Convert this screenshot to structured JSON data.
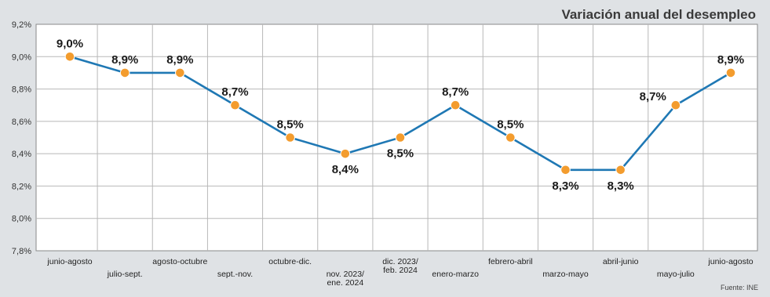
{
  "chart_data": {
    "type": "line",
    "title": "Variación anual del desempleo",
    "source": "Fuente: INE",
    "categories": [
      [
        "junio-agosto"
      ],
      [
        "julio-sept."
      ],
      [
        "agosto-octubre"
      ],
      [
        "sept.-nov."
      ],
      [
        "octubre-dic."
      ],
      [
        "nov. 2023/",
        "ene. 2024"
      ],
      [
        "dic. 2023/",
        "feb. 2024"
      ],
      [
        "enero-marzo"
      ],
      [
        "febrero-abril"
      ],
      [
        "marzo-mayo"
      ],
      [
        "abril-junio"
      ],
      [
        "mayo-julio"
      ],
      [
        "junio-agosto"
      ]
    ],
    "values": [
      9.0,
      8.9,
      8.9,
      8.7,
      8.5,
      8.4,
      8.5,
      8.7,
      8.5,
      8.3,
      8.3,
      8.7,
      8.9
    ],
    "data_labels": [
      "9,0%",
      "8,9%",
      "8,9%",
      "8,7%",
      "8,5%",
      "8,4%",
      "8,5%",
      "8,7%",
      "8,5%",
      "8,3%",
      "8,3%",
      "8,7%",
      "8,9%"
    ],
    "label_position": [
      "above",
      "above",
      "above",
      "above",
      "above",
      "below",
      "below",
      "above",
      "above",
      "below",
      "below",
      "left",
      "above"
    ],
    "ylim": [
      7.8,
      9.2
    ],
    "yticks": [
      7.8,
      8.0,
      8.2,
      8.4,
      8.6,
      8.8,
      9.0,
      9.2
    ],
    "ytick_labels": [
      "7,8%",
      "8,0%",
      "8,2%",
      "8,4%",
      "8,6%",
      "8,8%",
      "9,0%",
      "9,2%"
    ],
    "grid": true,
    "colors": {
      "line": "#1f78b4",
      "marker": "#f39c2e",
      "background": "#dfe2e5",
      "plot_background": "#ffffff",
      "grid": "#b8b8b8"
    }
  }
}
